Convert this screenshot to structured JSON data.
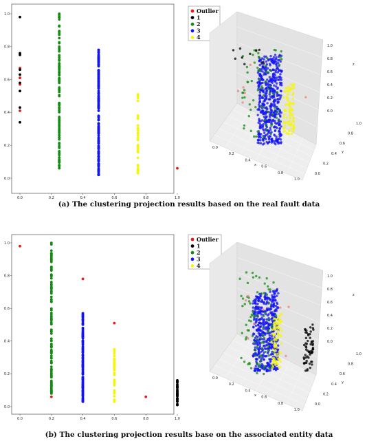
{
  "captions": {
    "a": "(a) The clustering projection results based on the real fault data",
    "b": "(b) The clustering  projection results base on the associated entity data"
  },
  "chart_data": [
    {
      "type": "scatter",
      "panel": "a-2d",
      "xlim": [
        0,
        1
      ],
      "ylim": [
        0,
        1
      ],
      "xticks": [
        "0.0",
        "0.2",
        "0.4",
        "0.6",
        "0.8",
        "1.0"
      ],
      "yticks": [
        "0.0",
        "0.2",
        "0.4",
        "0.6",
        "0.8",
        "1.0"
      ],
      "legend": {
        "position": "top-right-outside",
        "entries": [
          {
            "name": "Outlier",
            "color": "#e8191a"
          },
          {
            "name": "1",
            "color": "#000000"
          },
          {
            "name": "2",
            "color": "#148c14"
          },
          {
            "name": "3",
            "color": "#1414f0"
          },
          {
            "name": "4",
            "color": "#f5f50a"
          }
        ]
      },
      "series": [
        {
          "name": "Outlier",
          "color": "#e8191a",
          "points": [
            [
              0,
              0.67
            ],
            [
              0,
              0.61
            ],
            [
              0,
              0.57
            ],
            [
              0,
              0.41
            ],
            [
              1.0,
              0.06
            ]
          ]
        },
        {
          "name": "1",
          "color": "#000000",
          "points": [
            [
              0,
              0.98
            ],
            [
              0,
              0.76
            ],
            [
              0,
              0.75
            ],
            [
              0,
              0.66
            ],
            [
              0,
              0.63
            ],
            [
              0,
              0.58
            ],
            [
              0,
              0.53
            ],
            [
              0,
              0.43
            ],
            [
              0,
              0.34
            ]
          ]
        },
        {
          "name": "2",
          "color": "#148c14",
          "range": {
            "x": 0.25,
            "y": [
              0.06,
              1.0
            ],
            "count": 120
          }
        },
        {
          "name": "3",
          "color": "#1414f0",
          "range": {
            "x": 0.5,
            "y": [
              0.02,
              0.78
            ],
            "count": 180
          }
        },
        {
          "name": "4",
          "color": "#f5f50a",
          "range": {
            "x": 0.75,
            "y": [
              0.03,
              0.51
            ],
            "count": 35
          }
        }
      ]
    },
    {
      "type": "scatter3d",
      "panel": "a-3d",
      "xticks": [
        "0.0",
        "0.2",
        "0.4",
        "0.6",
        "0.8",
        "1.0"
      ],
      "yticks": [
        "0.0",
        "0.2",
        "0.4",
        "0.6",
        "0.8",
        "1.0"
      ],
      "zticks": [
        "0.0",
        "0.2",
        "0.4",
        "0.6",
        "0.8",
        "1.0"
      ],
      "xlabel": "x",
      "ylabel": "y",
      "zlabel": "z",
      "series": [
        {
          "name": "Outlier",
          "color": "#f08080"
        },
        {
          "name": "1",
          "color": "#000000"
        },
        {
          "name": "2",
          "color": "#148c14"
        },
        {
          "name": "3",
          "color": "#1414f0"
        },
        {
          "name": "4",
          "color": "#f5f50a"
        }
      ]
    },
    {
      "type": "scatter",
      "panel": "b-2d",
      "xlim": [
        0,
        1
      ],
      "ylim": [
        0,
        1
      ],
      "xticks": [
        "0.0",
        "0.2",
        "0.4",
        "0.6",
        "0.8",
        "1.0"
      ],
      "yticks": [
        "0.0",
        "0.2",
        "0.4",
        "0.6",
        "0.8",
        "1.0"
      ],
      "legend": {
        "position": "top-right-outside",
        "entries": [
          {
            "name": "Outlier",
            "color": "#e8191a"
          },
          {
            "name": "1",
            "color": "#000000"
          },
          {
            "name": "2",
            "color": "#148c14"
          },
          {
            "name": "3",
            "color": "#1414f0"
          },
          {
            "name": "4",
            "color": "#f5f50a"
          }
        ]
      },
      "series": [
        {
          "name": "Outlier",
          "color": "#e8191a",
          "points": [
            [
              0,
              0.98
            ],
            [
              0.2,
              0.15
            ],
            [
              0.2,
              0.06
            ],
            [
              0.4,
              0.78
            ],
            [
              0.6,
              0.51
            ],
            [
              0.8,
              0.06
            ]
          ]
        },
        {
          "name": "1",
          "color": "#000000",
          "range": {
            "x": 1.0,
            "y": [
              0.01,
              0.16
            ],
            "count": 30
          }
        },
        {
          "name": "2",
          "color": "#148c14",
          "range": {
            "x": 0.2,
            "y": [
              0.08,
              1.0
            ],
            "count": 120
          }
        },
        {
          "name": "3",
          "color": "#1414f0",
          "range": {
            "x": 0.4,
            "y": [
              0.03,
              0.57
            ],
            "count": 160
          }
        },
        {
          "name": "4",
          "color": "#f5f50a",
          "range": {
            "x": 0.6,
            "y": [
              0.03,
              0.35
            ],
            "count": 35
          }
        }
      ]
    },
    {
      "type": "scatter3d",
      "panel": "b-3d",
      "xticks": [
        "0.0",
        "0.2",
        "0.4",
        "0.6",
        "0.8",
        "1.0"
      ],
      "yticks": [
        "0.0",
        "0.2",
        "0.4",
        "0.6",
        "0.8",
        "1.0"
      ],
      "zticks": [
        "0.0",
        "0.2",
        "0.4",
        "0.6",
        "0.8",
        "1.0"
      ],
      "xlabel": "x",
      "ylabel": "y",
      "zlabel": "z",
      "series": [
        {
          "name": "Outlier",
          "color": "#f08080"
        },
        {
          "name": "1",
          "color": "#000000"
        },
        {
          "name": "2",
          "color": "#148c14"
        },
        {
          "name": "3",
          "color": "#1414f0"
        },
        {
          "name": "4",
          "color": "#f5f50a"
        }
      ]
    }
  ]
}
